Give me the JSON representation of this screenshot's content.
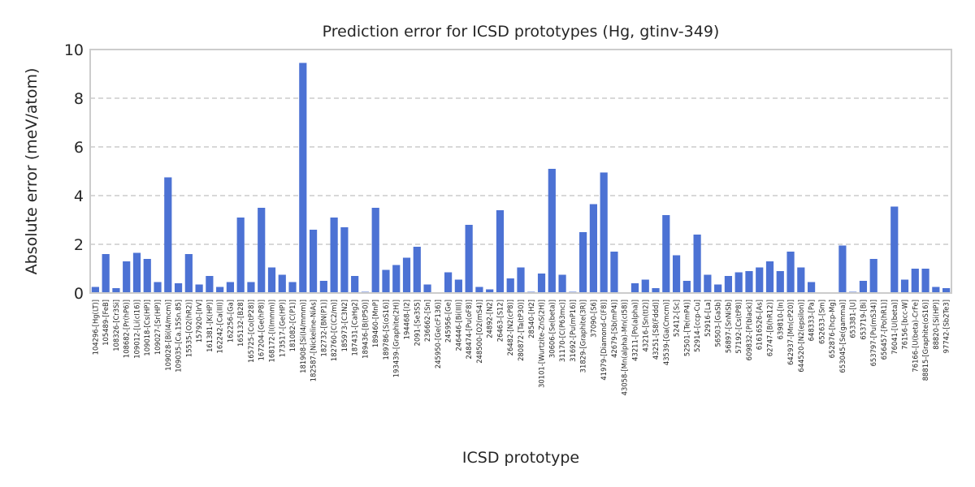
{
  "chart_data": {
    "type": "bar",
    "title": "Prediction error for ICSD prototypes (Hg, gtinv-349)",
    "xlabel": "ICSD prototype",
    "ylabel": "Absolute error (meV/atom)",
    "ylim": [
      0,
      10
    ],
    "yticks": [
      "0",
      "2",
      "4",
      "6",
      "8",
      "10"
    ],
    "grid": "horizontal dashed",
    "bar_color": "#4c72d4",
    "categories": [
      "104296-[Hg(LT)]",
      "105489-[FeB]",
      "108326-[Cr3Si]",
      "108682-[Pr(hP6)]",
      "109012-[Li(cI16)]",
      "109018-[Cs(HP)]",
      "109027-[Sr(HP)]",
      "109028-[Bi(I4/mcm)]",
      "109035-[Ca.15Sn.85]",
      "15535-[O2(hR2)]",
      "157920-[IrV]",
      "161381-[K(HP)]",
      "162242-[Ca(III)]",
      "162256-[Ga]",
      "165132-[B28]",
      "165725-[Co(tP28)]",
      "167204-[Ge(hP8)]",
      "168172-[I(Immm)]",
      "173517-[Ge(HP)]",
      "181082-[C(P1)]",
      "181908-[Si(I4/mmm)]",
      "182587-[Nickeline-NiAs]",
      "182732-[BN(P1)]",
      "182760-[C(C2/m)]",
      "185973-[C3N2]",
      "187431-[CaHg2]",
      "189436-[B(tP50)]",
      "189460-[MnP]",
      "189786-[S(oS16)]",
      "193439-[Graphite(2H)]",
      "194468-[I2]",
      "2091-[Se3S5]",
      "236662-[Sn]",
      "245950-[Ge(cF136)]",
      "245956-[Ge]",
      "246446-[Bi(III)]",
      "248474-[Pu(oF8)]",
      "248500-[O2(mS4)]",
      "24892-[N2]",
      "26463-[S12]",
      "26482-[N2(cP8)]",
      "280872-[Ta(tP30)]",
      "28540-[H2]",
      "30101-[Wurtzite-ZnS(2H)]",
      "30606-[Se(beta)]",
      "31170-[C(P63mc)]",
      "31692-[Pu(mP16)]",
      "31829-[Graphite(3R)]",
      "37090-[S6]",
      "41979-[Diamond-C(F8)]",
      "42679-[Sb(mP4)]",
      "43058-[Mn(alpha)-Mn(cI58)]",
      "43211-[Po(alpha)]",
      "43216-[Sn(tI2)]",
      "43251-[S8(Fddd)]",
      "43539-[Ga(Cmcm)]",
      "52412-[Sc]",
      "52501-[Te(mP4)]",
      "52914-[ccp-Cu]",
      "52916-[La]",
      "56503-[GaSb]",
      "56897-[SnNiSb]",
      "57192-[Cs(tP8)]",
      "609832-[P(black)]",
      "61616526-[As]",
      "62747-[B(hR12)]",
      "639810-[In]",
      "642937-[Mn(cP20)]",
      "644520-[N2(epsilon)]",
      "648333-[Pa]",
      "652633-[Sm]",
      "652876-[hcp-Mg]",
      "653045-[Se(gamma)]",
      "653381-[U]",
      "653719-[Bi]",
      "653797-[Pu(mS34)]",
      "656457-[Po(hR1)]",
      "76041-[U(beta)]",
      "76156-[bcc-W]",
      "76166-[U(beta)-CrFe]",
      "88815-[Graphite(oS16)]",
      "88820-[Si(HP)]",
      "97742-[Sb2Te3]"
    ],
    "values": [
      0.25,
      1.6,
      0.2,
      1.3,
      1.65,
      1.4,
      0.45,
      4.75,
      0.4,
      1.6,
      0.35,
      0.7,
      0.25,
      0.45,
      3.1,
      0.45,
      3.5,
      1.05,
      0.75,
      0.45,
      9.45,
      2.6,
      0.5,
      3.1,
      2.7,
      0.7,
      0.05,
      3.5,
      0.95,
      1.15,
      1.45,
      1.9,
      0.35,
      0.0,
      0.85,
      0.55,
      2.8,
      0.25,
      0.15,
      3.4,
      0.6,
      1.05,
      0.05,
      0.8,
      5.1,
      0.75,
      0.05,
      2.5,
      3.65,
      4.95,
      1.7,
      0.0,
      0.4,
      0.55,
      0.2,
      3.2,
      1.55,
      0.5,
      2.4,
      0.75,
      0.35,
      0.7,
      0.85,
      0.9,
      1.05,
      1.3,
      0.9,
      1.7,
      1.05,
      0.45,
      0.0,
      0.0,
      1.95,
      0.05,
      0.5,
      1.4,
      0.0,
      3.55,
      0.55,
      1.0,
      1.0,
      0.25,
      0.2
    ]
  }
}
